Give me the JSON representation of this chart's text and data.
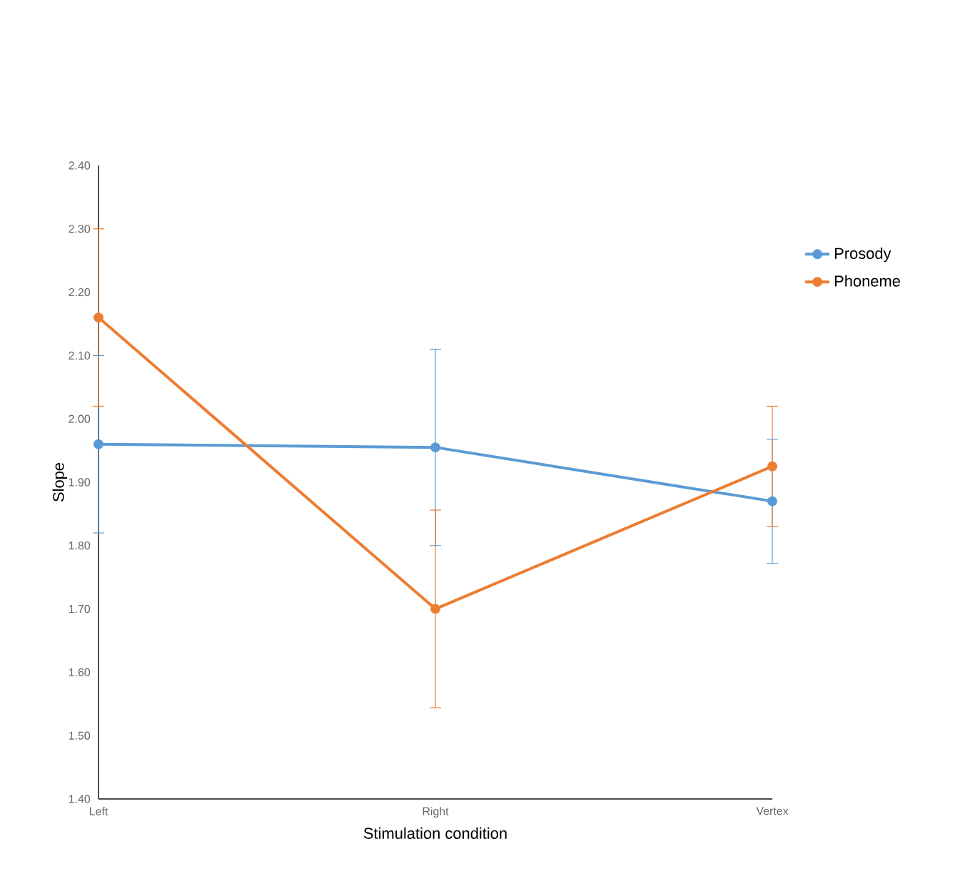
{
  "chart_data": {
    "type": "line",
    "xlabel": "Stimulation condition",
    "ylabel": "Slope",
    "categories": [
      "Left",
      "Right",
      "Vertex"
    ],
    "series": [
      {
        "name": "Prosody",
        "color": "#5b9bd5",
        "values": [
          1.96,
          1.955,
          1.87
        ],
        "errors": [
          0.14,
          0.155,
          0.098
        ]
      },
      {
        "name": "Phoneme",
        "color": "#ed7d31",
        "values": [
          2.16,
          1.7,
          1.925
        ],
        "errors": [
          0.14,
          0.156,
          0.095
        ]
      }
    ],
    "ylim": [
      1.4,
      2.4
    ],
    "yticks": [
      {
        "value": 1.4,
        "label": "1.40"
      },
      {
        "value": 1.5,
        "label": "1.50"
      },
      {
        "value": 1.6,
        "label": "1.60"
      },
      {
        "value": 1.7,
        "label": "1.70"
      },
      {
        "value": 1.8,
        "label": "1.80"
      },
      {
        "value": 1.9,
        "label": "1.90"
      },
      {
        "value": 2.0,
        "label": "2.00"
      },
      {
        "value": 2.1,
        "label": "2.10"
      },
      {
        "value": 2.2,
        "label": "2.20"
      },
      {
        "value": 2.3,
        "label": "2.30"
      },
      {
        "value": 2.4,
        "label": "2.40"
      }
    ],
    "marker": "circle",
    "legend": "right",
    "grid": false
  }
}
